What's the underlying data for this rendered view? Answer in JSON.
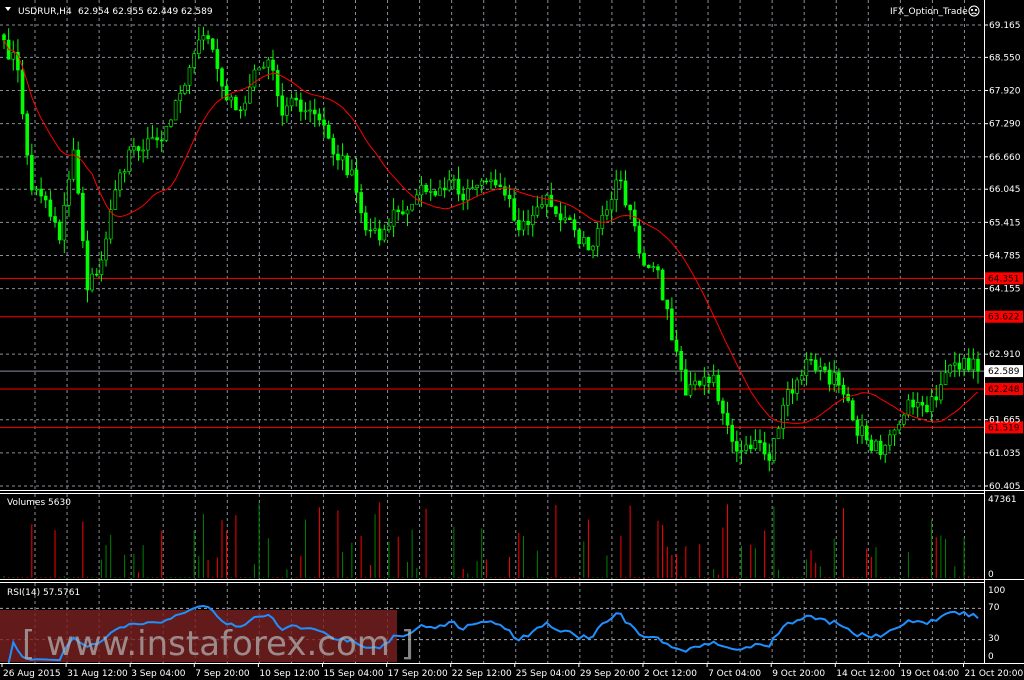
{
  "header": {
    "symbol": "USDRUR,H4",
    "ohlc": "62.954 62.955 62.449 62.589",
    "expert": "IFX_Option_Trade",
    "expert_icon": "sad-face-icon"
  },
  "watermark": "[ www.instaforex.com ]",
  "colors": {
    "bull": "#00ff00",
    "bear": "#00ff00",
    "ma": "#ff0000",
    "level": "#ff0000",
    "rsi": "#1e90ff",
    "vol_up": "#008000",
    "vol_down": "#ff0000",
    "grid": "#8a8f9a"
  },
  "chart_data": {
    "type": "candlestick",
    "price_axis": {
      "ticks": [
        "69.165",
        "68.550",
        "67.920",
        "67.290",
        "66.660",
        "66.045",
        "65.415",
        "64.785",
        "64.155",
        "62.910",
        "61.665",
        "61.035",
        "60.405"
      ],
      "range": [
        60.405,
        69.165
      ]
    },
    "closes": [
      68.88,
      68.31,
      66.03,
      65.84,
      65.08,
      66.79,
      64.13,
      64.7,
      66.03,
      66.79,
      66.79,
      66.98,
      67.36,
      68.02,
      68.88,
      68.7,
      67.74,
      67.55,
      68.31,
      68.5,
      67.45,
      67.74,
      67.55,
      67.26,
      66.6,
      66.41,
      65.27,
      65.08,
      65.65,
      65.65,
      66.12,
      65.93,
      66.22,
      65.84,
      66.12,
      66.22,
      65.93,
      65.27,
      65.55,
      65.93,
      65.46,
      65.27,
      64.89,
      65.55,
      66.22,
      65.65,
      64.6,
      64.51,
      63.18,
      62.13,
      62.32,
      62.51,
      61.56,
      61.08,
      61.27,
      60.89,
      61.94,
      62.42,
      62.8,
      62.61,
      62.32,
      61.66,
      61.28,
      61.0,
      61.47,
      62.04,
      61.94,
      62.04,
      62.7,
      62.83,
      62.589
    ],
    "levels": [
      {
        "label": "64.351",
        "value": 64.351
      },
      {
        "label": "63.622",
        "value": 63.622
      },
      {
        "label": "62.248",
        "value": 62.248
      },
      {
        "label": "61.519",
        "value": 61.519
      }
    ],
    "current_price": {
      "label": "62.589",
      "value": 62.589
    },
    "ma": {
      "type": "sma",
      "period": 20
    },
    "volumes": {
      "title": "Volumes 5630",
      "max_label": "47361",
      "min_label": "0",
      "max": 47361
    },
    "rsi": {
      "title": "RSI(14) 57.5761",
      "period": 14,
      "ticks": [
        "100",
        "70",
        "30",
        "0"
      ],
      "levels": [
        70,
        30
      ]
    },
    "time_labels": [
      "26 Aug 2015",
      "31 Aug 12:00",
      "3 Sep 04:00",
      "7 Sep 20:00",
      "10 Sep 12:00",
      "15 Sep 04:00",
      "17 Sep 20:00",
      "22 Sep 12:00",
      "25 Sep 04:00",
      "29 Sep 20:00",
      "2 Oct 12:00",
      "7 Oct 04:00",
      "9 Oct 20:00",
      "14 Oct 12:00",
      "19 Oct 04:00",
      "21 Oct 20:00"
    ]
  }
}
